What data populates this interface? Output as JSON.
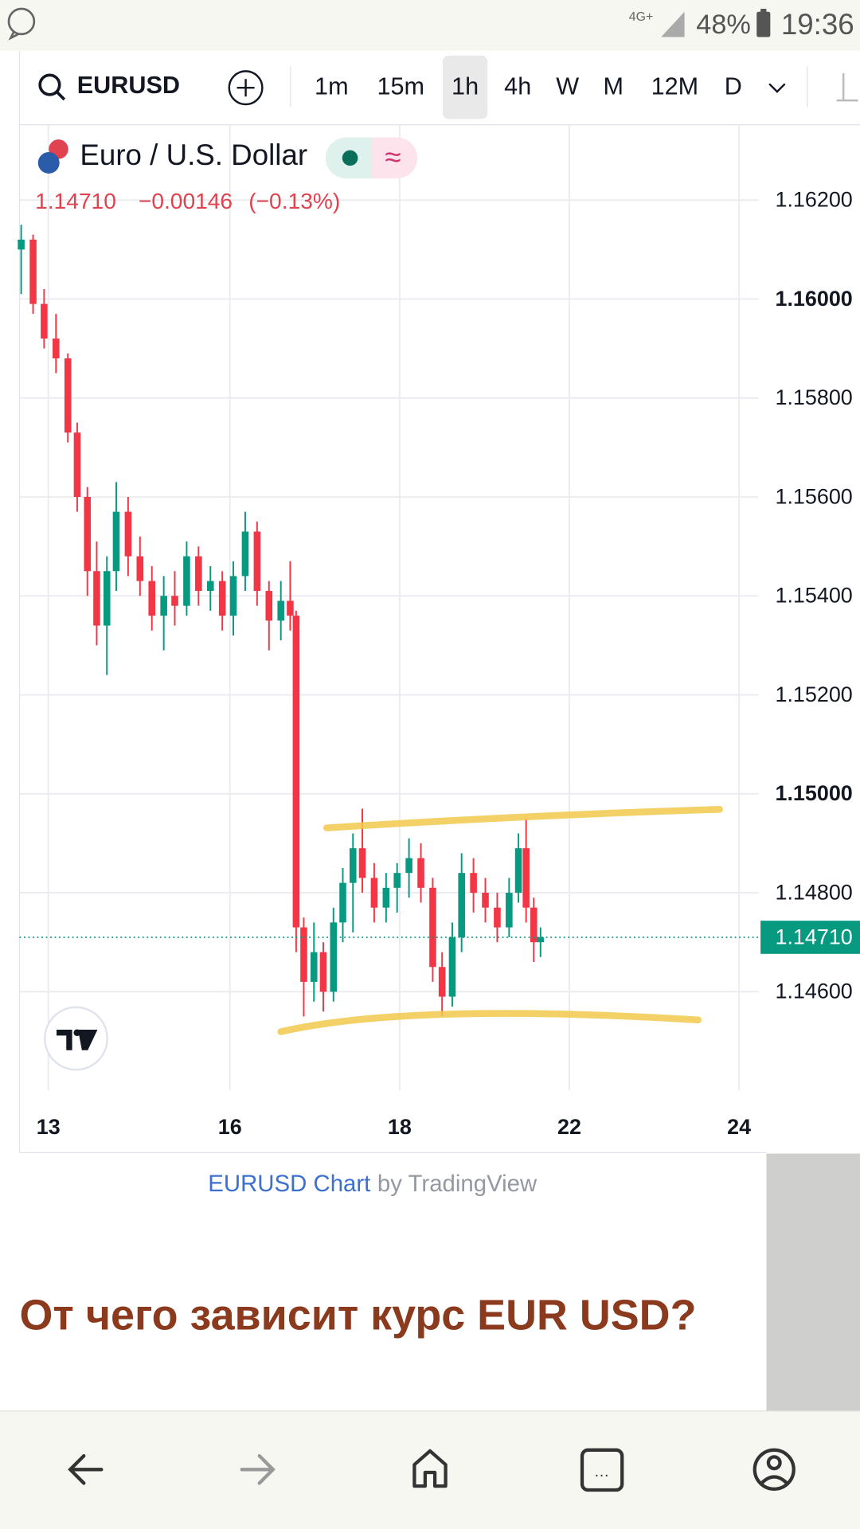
{
  "status_bar": {
    "network": "4G+",
    "battery": "48%",
    "time": "19:36"
  },
  "toolbar": {
    "symbol": "EURUSD",
    "intervals": [
      "1m",
      "15m",
      "1h",
      "4h",
      "W",
      "M",
      "12M",
      "D"
    ],
    "active_interval": 2
  },
  "chart_data": {
    "type": "candlestick",
    "title": "Euro / U.S. Dollar",
    "quote": {
      "price": "1.14710",
      "change": "−0.00146",
      "change_percent": "(−0.13%)"
    },
    "x": [
      0.68,
      0.82,
      0.95,
      1.09,
      1.23,
      1.34,
      1.46,
      1.57,
      1.69,
      1.8,
      1.94,
      2.08,
      2.22,
      2.36,
      2.49,
      2.63,
      2.77,
      2.91,
      3.05,
      3.18,
      3.32,
      3.46,
      3.6,
      3.74,
      3.85,
      3.92,
      4.01,
      4.13,
      4.24,
      4.36,
      4.47,
      4.59,
      4.7,
      4.84,
      4.98,
      5.11,
      5.25,
      5.39,
      5.53,
      5.64,
      5.76,
      5.87,
      6.01,
      6.15,
      6.29,
      6.43,
      6.54,
      6.63,
      6.72,
      6.8
    ],
    "open": [
      1.161,
      1.1612,
      1.1599,
      1.1592,
      1.1588,
      1.1573,
      1.156,
      1.1545,
      1.1534,
      1.1545,
      1.1557,
      1.1548,
      1.1543,
      1.1536,
      1.154,
      1.1538,
      1.1548,
      1.1541,
      1.1543,
      1.1536,
      1.1544,
      1.1553,
      1.1541,
      1.1535,
      1.1539,
      1.1536,
      1.1473,
      1.1462,
      1.1468,
      1.146,
      1.1474,
      1.1482,
      1.1489,
      1.1483,
      1.1477,
      1.1481,
      1.1484,
      1.1487,
      1.1481,
      1.1465,
      1.1459,
      1.1471,
      1.1484,
      1.148,
      1.1477,
      1.1473,
      1.148,
      1.1489,
      1.1477,
      1.147
    ],
    "high": [
      1.1615,
      1.1613,
      1.1602,
      1.1597,
      1.1589,
      1.1575,
      1.1562,
      1.1551,
      1.1548,
      1.1563,
      1.156,
      1.1552,
      1.1546,
      1.1544,
      1.1545,
      1.1551,
      1.155,
      1.1546,
      1.1545,
      1.1547,
      1.1557,
      1.1555,
      1.1543,
      1.1543,
      1.1547,
      1.1537,
      1.1475,
      1.1474,
      1.147,
      1.1477,
      1.1485,
      1.1492,
      1.1497,
      1.1486,
      1.1484,
      1.1486,
      1.1491,
      1.149,
      1.1483,
      1.1468,
      1.1474,
      1.1488,
      1.1487,
      1.1483,
      1.148,
      1.1483,
      1.1492,
      1.1495,
      1.1479,
      1.1473
    ],
    "low": [
      1.1601,
      1.1597,
      1.159,
      1.1585,
      1.1571,
      1.1557,
      1.154,
      1.153,
      1.1524,
      1.1541,
      1.1544,
      1.154,
      1.1533,
      1.1529,
      1.1534,
      1.1536,
      1.1538,
      1.1537,
      1.1533,
      1.1532,
      1.1541,
      1.1538,
      1.1529,
      1.1531,
      1.1533,
      1.1468,
      1.1455,
      1.1458,
      1.1456,
      1.1458,
      1.147,
      1.1472,
      1.148,
      1.1474,
      1.1474,
      1.1476,
      1.1479,
      1.1478,
      1.1462,
      1.1455,
      1.1457,
      1.1468,
      1.1476,
      1.1474,
      1.147,
      1.1471,
      1.1478,
      1.1474,
      1.1466,
      1.1467
    ],
    "close": [
      1.1612,
      1.1599,
      1.1592,
      1.1588,
      1.1573,
      1.156,
      1.1545,
      1.1534,
      1.1545,
      1.1557,
      1.1548,
      1.1543,
      1.1536,
      1.154,
      1.1538,
      1.1548,
      1.1541,
      1.1543,
      1.1536,
      1.1544,
      1.1553,
      1.1541,
      1.1535,
      1.1539,
      1.1536,
      1.1473,
      1.1462,
      1.1468,
      1.146,
      1.1474,
      1.1482,
      1.1489,
      1.1483,
      1.1477,
      1.1481,
      1.1484,
      1.1487,
      1.1481,
      1.1465,
      1.1459,
      1.1471,
      1.1484,
      1.148,
      1.1477,
      1.1473,
      1.148,
      1.1489,
      1.1477,
      1.147,
      1.1471
    ],
    "up_color": "#089981",
    "down_color": "#f23645",
    "xlim": [
      0.66,
      9.37
    ],
    "xticks": [
      {
        "value": 1,
        "label": "13"
      },
      {
        "value": 3.14,
        "label": "16"
      },
      {
        "value": 5.14,
        "label": "18"
      },
      {
        "value": 7.14,
        "label": "22"
      },
      {
        "value": 9.14,
        "label": "24"
      }
    ],
    "ylim": [
      1.14401,
      1.16352
    ],
    "yticks": [
      {
        "value": 1.146,
        "label": "1.14600"
      },
      {
        "value": 1.148,
        "label": "1.14800"
      },
      {
        "value": 1.15,
        "label": "1.15000"
      },
      {
        "value": 1.152,
        "label": "1.15200"
      },
      {
        "value": 1.154,
        "label": "1.15400"
      },
      {
        "value": 1.156,
        "label": "1.15600"
      },
      {
        "value": 1.158,
        "label": "1.15800"
      },
      {
        "value": 1.16,
        "label": "1.16000"
      },
      {
        "value": 1.162,
        "label": "1.16200"
      }
    ],
    "last_price": {
      "value": 1.1471,
      "label": "1.14710"
    },
    "grid": true
  },
  "footer": {
    "link": "EURUSD Chart",
    "credit": "by TradingView"
  },
  "article": {
    "heading": "От чего зависит курс EUR USD?"
  }
}
